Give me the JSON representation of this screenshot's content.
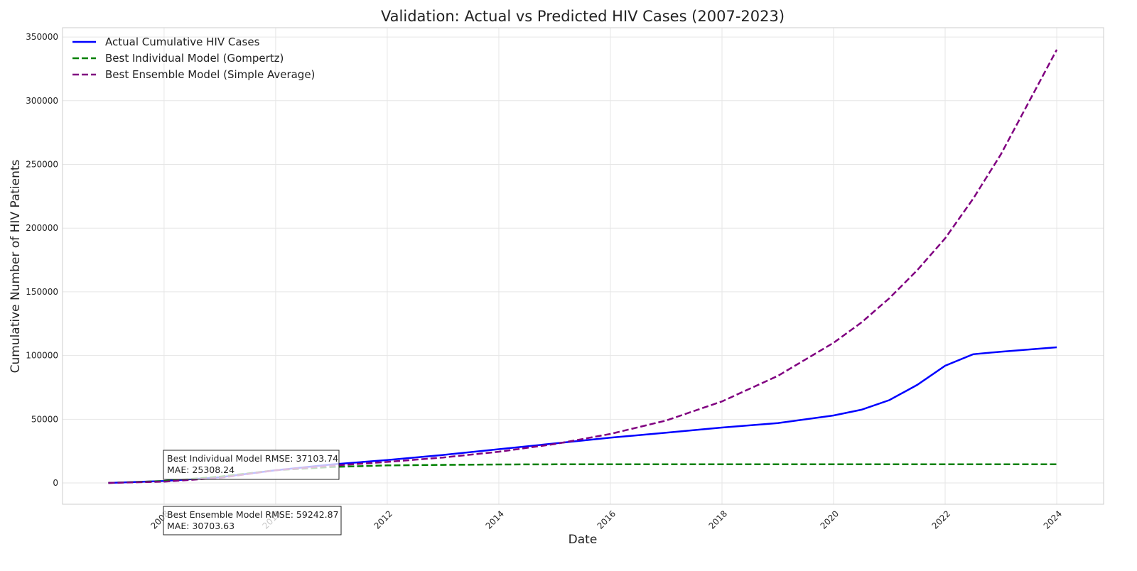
{
  "chart_data": {
    "type": "line",
    "title": "Validation: Actual vs Predicted HIV Cases (2007-2023)",
    "x_label": "Date",
    "y_label": "Cumulative Number of HIV Patients",
    "x": [
      2007,
      2008,
      2009,
      2010,
      2011,
      2012,
      2013,
      2014,
      2015,
      2016,
      2017,
      2018,
      2019,
      2020,
      2020.5,
      2021,
      2021.5,
      2022,
      2022.5,
      2023,
      2024
    ],
    "series": [
      {
        "name": "Actual Cumulative HIV Cases",
        "color": "#0000ff",
        "linestyle": "solid",
        "values": [
          0,
          1500,
          4500,
          10000,
          14500,
          18000,
          22000,
          26500,
          31000,
          35500,
          39500,
          43500,
          47000,
          53000,
          57500,
          65000,
          77000,
          92000,
          101000,
          103000,
          106500
        ]
      },
      {
        "name": "Best Individual Model (Gompertz)",
        "color": "#008000",
        "linestyle": "dashed",
        "values": [
          0,
          1500,
          5000,
          10000,
          12500,
          13800,
          14200,
          14500,
          14600,
          14700,
          14700,
          14700,
          14700,
          14700,
          14700,
          14700,
          14700,
          14700,
          14700,
          14700,
          14700
        ]
      },
      {
        "name": "Best Ensemble Model (Simple Average)",
        "color": "#800080",
        "linestyle": "dashed",
        "values": [
          0,
          1000,
          4000,
          10000,
          13500,
          16500,
          20000,
          24500,
          30500,
          38500,
          49000,
          64000,
          84000,
          110000,
          126000,
          145000,
          167000,
          192000,
          223000,
          258000,
          340000
        ]
      }
    ],
    "xlim": [
      2006.18,
      2024.84
    ],
    "xticks": [
      2008,
      2010,
      2012,
      2014,
      2016,
      2018,
      2020,
      2022,
      2024
    ],
    "ylim": [
      -16700,
      357300
    ],
    "yticks": [
      0,
      50000,
      100000,
      150000,
      200000,
      250000,
      300000,
      350000
    ],
    "grid": true,
    "legend": "upper-left",
    "annotations": [
      {
        "lines": [
          "Best Individual Model RMSE: 37103.74",
          "MAE: 25308.24"
        ]
      },
      {
        "lines": [
          "Best Ensemble Model RMSE: 59242.87",
          "MAE: 30703.63"
        ]
      }
    ]
  }
}
